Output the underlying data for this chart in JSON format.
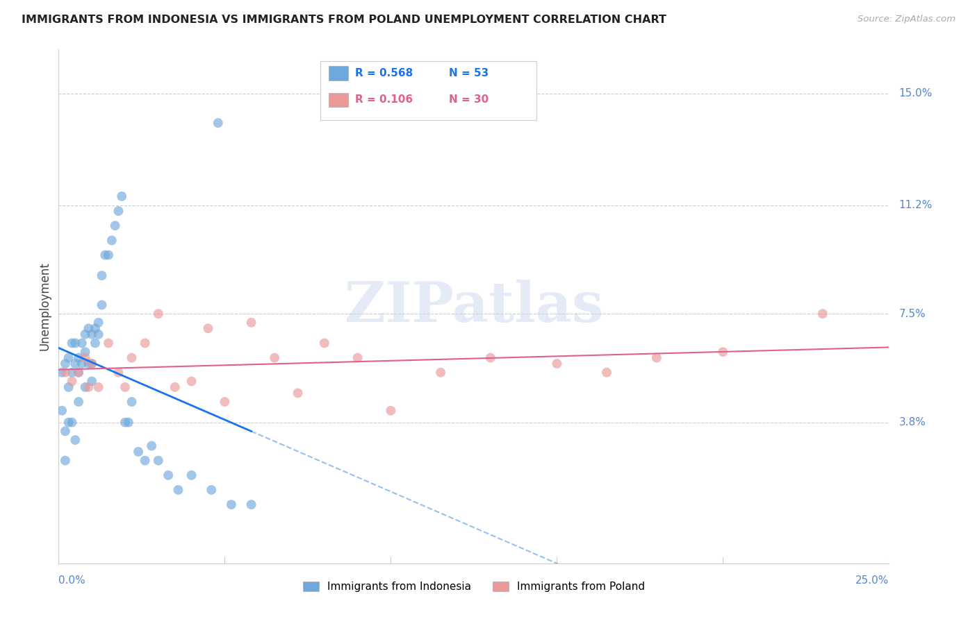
{
  "title": "IMMIGRANTS FROM INDONESIA VS IMMIGRANTS FROM POLAND UNEMPLOYMENT CORRELATION CHART",
  "source": "Source: ZipAtlas.com",
  "ylabel": "Unemployment",
  "ytick_labels": [
    "15.0%",
    "11.2%",
    "7.5%",
    "3.8%"
  ],
  "ytick_values": [
    0.15,
    0.112,
    0.075,
    0.038
  ],
  "xlim": [
    0.0,
    0.25
  ],
  "ylim": [
    -0.01,
    0.165
  ],
  "indonesia_color": "#6fa8dc",
  "poland_color": "#ea9999",
  "indonesia_line_color": "#1a73e8",
  "poland_line_color": "#e06090",
  "legend_indonesia_R": "0.568",
  "legend_indonesia_N": "53",
  "legend_poland_R": "0.106",
  "legend_poland_N": "30",
  "watermark_text": "ZIPatlas",
  "indonesia_x": [
    0.001,
    0.001,
    0.002,
    0.002,
    0.002,
    0.003,
    0.003,
    0.003,
    0.004,
    0.004,
    0.004,
    0.005,
    0.005,
    0.005,
    0.006,
    0.006,
    0.006,
    0.007,
    0.007,
    0.008,
    0.008,
    0.008,
    0.009,
    0.009,
    0.01,
    0.01,
    0.01,
    0.011,
    0.011,
    0.012,
    0.012,
    0.013,
    0.013,
    0.014,
    0.015,
    0.016,
    0.017,
    0.018,
    0.019,
    0.02,
    0.021,
    0.022,
    0.024,
    0.026,
    0.028,
    0.03,
    0.033,
    0.036,
    0.04,
    0.046,
    0.052,
    0.058,
    0.048
  ],
  "indonesia_y": [
    0.055,
    0.042,
    0.058,
    0.035,
    0.025,
    0.06,
    0.05,
    0.038,
    0.055,
    0.065,
    0.038,
    0.058,
    0.065,
    0.032,
    0.06,
    0.055,
    0.045,
    0.065,
    0.058,
    0.068,
    0.062,
    0.05,
    0.07,
    0.058,
    0.068,
    0.058,
    0.052,
    0.07,
    0.065,
    0.072,
    0.068,
    0.078,
    0.088,
    0.095,
    0.095,
    0.1,
    0.105,
    0.11,
    0.115,
    0.038,
    0.038,
    0.045,
    0.028,
    0.025,
    0.03,
    0.025,
    0.02,
    0.015,
    0.02,
    0.015,
    0.01,
    0.01,
    0.14
  ],
  "poland_x": [
    0.002,
    0.004,
    0.006,
    0.008,
    0.009,
    0.01,
    0.012,
    0.015,
    0.018,
    0.02,
    0.022,
    0.026,
    0.03,
    0.035,
    0.04,
    0.045,
    0.05,
    0.058,
    0.065,
    0.072,
    0.08,
    0.09,
    0.1,
    0.115,
    0.13,
    0.15,
    0.165,
    0.18,
    0.2,
    0.23
  ],
  "poland_y": [
    0.055,
    0.052,
    0.055,
    0.06,
    0.05,
    0.058,
    0.05,
    0.065,
    0.055,
    0.05,
    0.06,
    0.065,
    0.075,
    0.05,
    0.052,
    0.07,
    0.045,
    0.072,
    0.06,
    0.048,
    0.065,
    0.06,
    0.042,
    0.055,
    0.06,
    0.058,
    0.055,
    0.06,
    0.062,
    0.075
  ]
}
